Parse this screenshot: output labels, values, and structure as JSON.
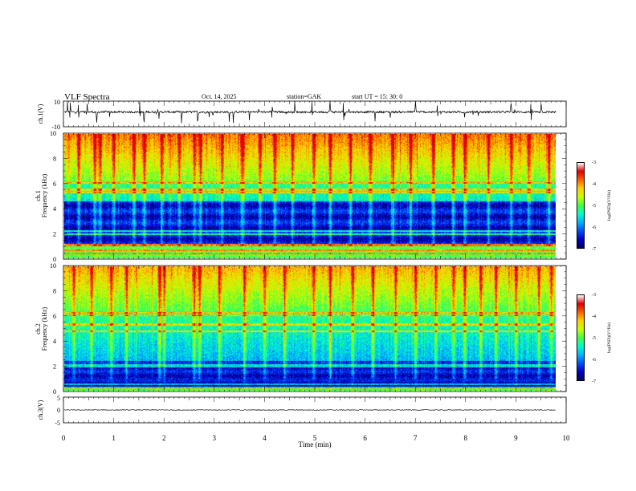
{
  "header": {
    "title": "VLF  Spectra",
    "date": "Oct. 14,  2025",
    "station": "station=GAK",
    "start_ut": "start  UT  =    15: 30: 0"
  },
  "chart_data": [
    {
      "type": "line",
      "panel": "ch1-waveform",
      "ylabel": "ch.1(V)",
      "ylim": [
        -10,
        10
      ],
      "y_ticks": [
        "10",
        "-10"
      ],
      "x_range_min": [
        0,
        9.8
      ],
      "baseline_v": 1.5,
      "noise_amplitude_v": 1.2,
      "spike_times_min": [
        0.08,
        0.13,
        0.3,
        0.47,
        0.66,
        0.92,
        1.52,
        1.6,
        1.9,
        2.35,
        2.67,
        2.9,
        3.3,
        3.38,
        3.7,
        4.15,
        4.6,
        4.95,
        5.3,
        5.57,
        6.2,
        6.5,
        7.0,
        7.44,
        7.98,
        8.9,
        9.3,
        9.5
      ]
    },
    {
      "type": "heatmap",
      "panel": "ch1-spectrogram",
      "ylabel": "ch.1\nFrequency  (kHz)",
      "ylim": [
        0,
        10
      ],
      "y_ticks": [
        "0",
        "2",
        "4",
        "6",
        "8",
        "10"
      ],
      "x_range_min": [
        0,
        9.8
      ],
      "color_scale": "log(PSD)(V²/Hz)",
      "color_range": [
        -7,
        -3
      ],
      "color_ticks": [
        "-3",
        "-4",
        "-5",
        "-6",
        "-7"
      ],
      "bright_line_khz": [
        0.4,
        0.7,
        1.1,
        1.95,
        2.2,
        5.3,
        5.55,
        6.1
      ],
      "vertical_burst_min": [
        0.3,
        0.62,
        0.72,
        1.0,
        1.4,
        1.6,
        1.95,
        2.3,
        2.6,
        2.72,
        3.15,
        3.55,
        3.9,
        4.2,
        4.55,
        4.98,
        5.3,
        5.7,
        6.1,
        6.55,
        6.9,
        7.35,
        7.75,
        7.98,
        8.45,
        8.9,
        9.25,
        9.65
      ],
      "quiet_band_khz": [
        1.2,
        4.6
      ]
    },
    {
      "type": "heatmap",
      "panel": "ch2-spectrogram",
      "ylabel": "ch.2\nFrequency  (kHz)",
      "ylim": [
        0,
        10
      ],
      "y_ticks": [
        "0",
        "2",
        "4",
        "6",
        "8",
        "10"
      ],
      "x_range_min": [
        0,
        9.8
      ],
      "color_scale": "log(PSD)(V²/Hz)",
      "color_range": [
        -7,
        -3
      ],
      "color_ticks": [
        "-3",
        "-4",
        "-5",
        "-6",
        "-7"
      ],
      "bright_line_khz": [
        0.3,
        0.55,
        1.95,
        2.1,
        4.8,
        5.35,
        6.1,
        6.3
      ],
      "vertical_burst_min": [
        0.2,
        0.55,
        0.95,
        1.25,
        1.9,
        2.0,
        2.6,
        2.7,
        3.1,
        3.6,
        4.0,
        4.4,
        4.97,
        5.3,
        5.75,
        6.15,
        6.6,
        7.0,
        7.4,
        7.75,
        7.98,
        8.3,
        8.6,
        9.0,
        9.45,
        9.7
      ],
      "quiet_band_khz": [
        0.3,
        2.4
      ]
    },
    {
      "type": "line",
      "panel": "ch3-waveform",
      "ylabel": "ch.3(V)",
      "ylim": [
        -5,
        5
      ],
      "y_ticks": [
        "5",
        "0",
        "-5"
      ],
      "x_range_min": [
        0,
        9.8
      ],
      "baseline_v": 0,
      "noise_amplitude_v": 0.25
    }
  ],
  "x_axis": {
    "label": "Time  (min)",
    "range": [
      0,
      10
    ],
    "ticks": [
      "0",
      "1",
      "2",
      "3",
      "4",
      "5",
      "6",
      "7",
      "8",
      "9",
      "10"
    ]
  },
  "colors": {
    "scale": [
      "#000060",
      "#0000c8",
      "#0050ff",
      "#00b4ff",
      "#00ffc8",
      "#40ff40",
      "#c8ff00",
      "#ffd000",
      "#ff6000",
      "#e00000",
      "#ffffff"
    ]
  }
}
